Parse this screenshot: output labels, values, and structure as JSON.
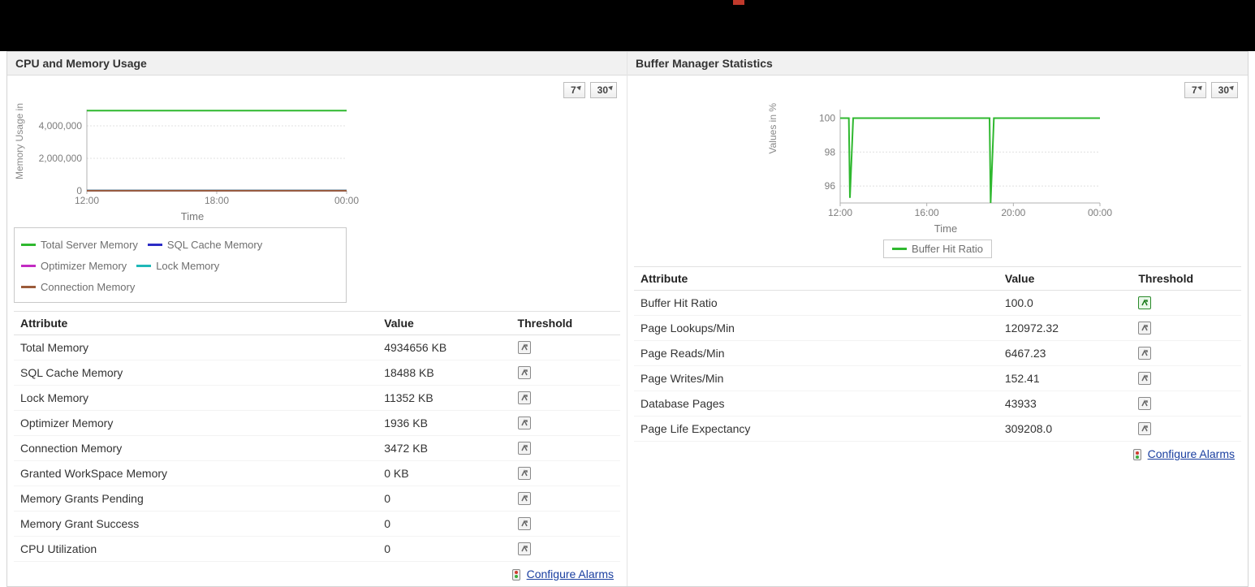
{
  "palette": {
    "green": "#2fb82f",
    "blue": "#2b2bc5",
    "magenta": "#c22bc2",
    "cyan": "#1fb8b8",
    "brown": "#9b5b3a",
    "grid": "#e0e0e0",
    "axis": "#b0b0b0",
    "tick_text": "#7d7d7d"
  },
  "time_ranges": {
    "btn7": "7",
    "btn30": "30"
  },
  "left": {
    "title": "CPU and Memory Usage",
    "chart": {
      "type": "line",
      "y_label": "Memory Usage in",
      "x_label": "Time",
      "x_ticks": [
        "12:00",
        "18:00",
        "00:00"
      ],
      "y_ticks": [
        "0",
        "2,000,000",
        "4,000,000"
      ],
      "y_tick_values": [
        0,
        2000000,
        4000000
      ],
      "x_range_hours": [
        12,
        24
      ],
      "y_range": [
        0,
        5000000
      ],
      "series": [
        {
          "name": "Total Server Memory",
          "color_key": "green",
          "values": [
            [
              12,
              4934656
            ],
            [
              24,
              4934656
            ]
          ]
        },
        {
          "name": "SQL Cache Memory",
          "color_key": "blue",
          "values": [
            [
              12,
              18488
            ],
            [
              24,
              18488
            ]
          ]
        },
        {
          "name": "Optimizer Memory",
          "color_key": "magenta",
          "values": [
            [
              12,
              1936
            ],
            [
              24,
              1936
            ]
          ]
        },
        {
          "name": "Lock Memory",
          "color_key": "cyan",
          "values": [
            [
              12,
              11352
            ],
            [
              24,
              11352
            ]
          ]
        },
        {
          "name": "Connection Memory",
          "color_key": "brown",
          "values": [
            [
              12,
              3472
            ],
            [
              24,
              3472
            ]
          ]
        }
      ],
      "legend_layout": [
        [
          "Total Server Memory",
          "SQL Cache Memory"
        ],
        [
          "Optimizer Memory",
          "Lock Memory"
        ],
        [
          "Connection Memory"
        ]
      ]
    },
    "table": {
      "columns": [
        "Attribute",
        "Value",
        "Threshold"
      ],
      "rows": [
        {
          "attr": "Total Memory",
          "value": "4934656 KB",
          "threshold_state": "normal"
        },
        {
          "attr": "SQL Cache Memory",
          "value": "18488 KB",
          "threshold_state": "normal"
        },
        {
          "attr": "Lock Memory",
          "value": "11352 KB",
          "threshold_state": "normal"
        },
        {
          "attr": "Optimizer Memory",
          "value": "1936 KB",
          "threshold_state": "normal"
        },
        {
          "attr": "Connection Memory",
          "value": "3472 KB",
          "threshold_state": "normal"
        },
        {
          "attr": "Granted WorkSpace Memory",
          "value": "0 KB",
          "threshold_state": "normal"
        },
        {
          "attr": "Memory Grants Pending",
          "value": "0",
          "threshold_state": "normal"
        },
        {
          "attr": "Memory Grant Success",
          "value": "0",
          "threshold_state": "normal"
        },
        {
          "attr": "CPU Utilization",
          "value": "0",
          "threshold_state": "normal"
        }
      ]
    },
    "configure_label": "Configure Alarms"
  },
  "right": {
    "title": "Buffer Manager Statistics",
    "chart": {
      "type": "line",
      "y_label": "Values in %",
      "x_label": "Time",
      "x_ticks": [
        "12:00",
        "16:00",
        "20:00",
        "00:00"
      ],
      "y_ticks": [
        "96",
        "98",
        "100"
      ],
      "y_tick_values": [
        96,
        98,
        100
      ],
      "x_range_hours": [
        12,
        24
      ],
      "y_range": [
        95,
        100.5
      ],
      "series": [
        {
          "name": "Buffer Hit Ratio",
          "color_key": "green",
          "values": [
            [
              12,
              100
            ],
            [
              12.4,
              100
            ],
            [
              12.45,
              95.3
            ],
            [
              12.6,
              100
            ],
            [
              18.9,
              100
            ],
            [
              18.95,
              95.0
            ],
            [
              19.1,
              100
            ],
            [
              24,
              100
            ]
          ]
        }
      ],
      "legend_layout": [
        [
          "Buffer Hit Ratio"
        ]
      ]
    },
    "table": {
      "columns": [
        "Attribute",
        "Value",
        "Threshold"
      ],
      "rows": [
        {
          "attr": "Buffer Hit Ratio",
          "value": "100.0",
          "threshold_state": "ok"
        },
        {
          "attr": "Page Lookups/Min",
          "value": "120972.32",
          "threshold_state": "normal"
        },
        {
          "attr": "Page Reads/Min",
          "value": "6467.23",
          "threshold_state": "normal"
        },
        {
          "attr": "Page Writes/Min",
          "value": "152.41",
          "threshold_state": "normal"
        },
        {
          "attr": "Database Pages",
          "value": "43933",
          "threshold_state": "normal"
        },
        {
          "attr": "Page Life Expectancy",
          "value": "309208.0",
          "threshold_state": "normal"
        }
      ]
    },
    "configure_label": "Configure Alarms"
  }
}
